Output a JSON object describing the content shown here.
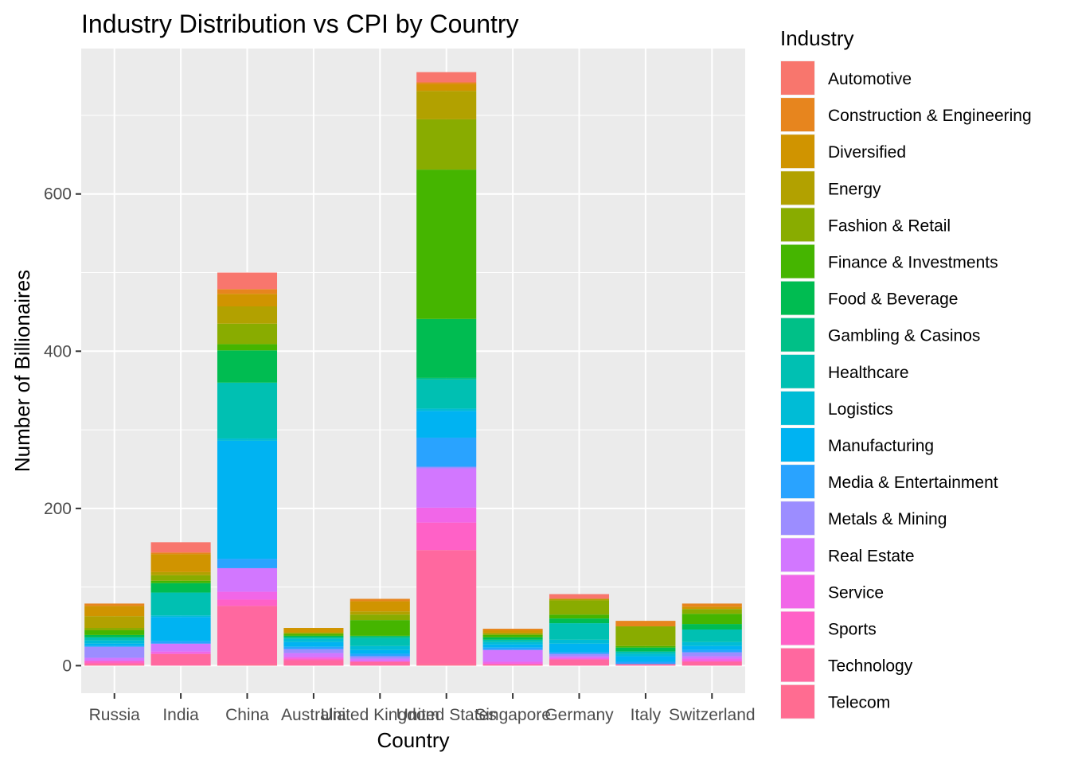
{
  "chart_data": {
    "type": "bar",
    "stacked": true,
    "title": "Industry Distribution vs CPI by Country",
    "xlabel": "Country",
    "ylabel": "Number of Billionaires",
    "ylim": [
      -35,
      785
    ],
    "yticks": [
      0,
      200,
      400,
      600
    ],
    "grid": true,
    "legend_position": "right",
    "legend_title": "Industry",
    "categories": [
      "Russia",
      "India",
      "China",
      "Australia",
      "United Kingdom",
      "United States",
      "Singapore",
      "Germany",
      "Italy",
      "Switzerland"
    ],
    "series": [
      {
        "name": "Automotive",
        "color": "#F8766D",
        "values": [
          0,
          13,
          21,
          0,
          0,
          13,
          0,
          6,
          0,
          0
        ]
      },
      {
        "name": "Construction & Engineering",
        "color": "#E7851E",
        "values": [
          3,
          2,
          6,
          0,
          3,
          2,
          2,
          0,
          7,
          4
        ]
      },
      {
        "name": "Diversified",
        "color": "#D09400",
        "values": [
          13,
          23,
          16,
          6,
          13,
          9,
          4,
          0,
          0,
          3
        ]
      },
      {
        "name": "Energy",
        "color": "#B2A100",
        "values": [
          15,
          4,
          22,
          0,
          4,
          36,
          0,
          2,
          0,
          0
        ]
      },
      {
        "name": "Fashion & Retail",
        "color": "#89AC00",
        "values": [
          3,
          7,
          26,
          2,
          7,
          64,
          2,
          18,
          25,
          6
        ]
      },
      {
        "name": "Finance & Investments",
        "color": "#45B500",
        "values": [
          6,
          3,
          8,
          2,
          20,
          190,
          3,
          5,
          2,
          13
        ]
      },
      {
        "name": "Food & Beverage",
        "color": "#00BC51",
        "values": [
          3,
          12,
          41,
          2,
          1,
          75,
          3,
          6,
          5,
          7
        ]
      },
      {
        "name": "Gambling & Casinos",
        "color": "#00C087",
        "values": [
          0,
          0,
          0,
          0,
          2,
          2,
          0,
          0,
          0,
          0
        ]
      },
      {
        "name": "Healthcare",
        "color": "#00C0B2",
        "values": [
          4,
          29,
          71,
          2,
          10,
          37,
          3,
          21,
          3,
          16
        ]
      },
      {
        "name": "Logistics",
        "color": "#00BCD6",
        "values": [
          4,
          2,
          3,
          4,
          5,
          3,
          3,
          5,
          3,
          5
        ]
      },
      {
        "name": "Manufacturing",
        "color": "#00B3F2",
        "values": [
          3,
          31,
          150,
          6,
          5,
          34,
          4,
          11,
          7,
          5
        ]
      },
      {
        "name": "Media & Entertainment",
        "color": "#29A3FF",
        "values": [
          1,
          3,
          12,
          3,
          3,
          37,
          3,
          2,
          3,
          3
        ]
      },
      {
        "name": "Metals & Mining",
        "color": "#9C8DFF",
        "values": [
          14,
          0,
          0,
          5,
          3,
          2,
          0,
          3,
          0,
          5
        ]
      },
      {
        "name": "Real Estate",
        "color": "#D277FF",
        "values": [
          4,
          10,
          30,
          5,
          3,
          50,
          15,
          2,
          0,
          3
        ]
      },
      {
        "name": "Service",
        "color": "#F166E8",
        "values": [
          0,
          3,
          10,
          2,
          1,
          19,
          3,
          2,
          0,
          3
        ]
      },
      {
        "name": "Sports",
        "color": "#FF61C7",
        "values": [
          3,
          0,
          8,
          2,
          0,
          35,
          0,
          0,
          0,
          1
        ]
      },
      {
        "name": "Technology",
        "color": "#FF689F",
        "values": [
          2,
          15,
          74,
          7,
          5,
          145,
          2,
          8,
          2,
          5
        ]
      },
      {
        "name": "Telecom",
        "color": "#FF6C91",
        "values": [
          1,
          0,
          2,
          0,
          0,
          2,
          0,
          0,
          0,
          0
        ]
      }
    ]
  }
}
